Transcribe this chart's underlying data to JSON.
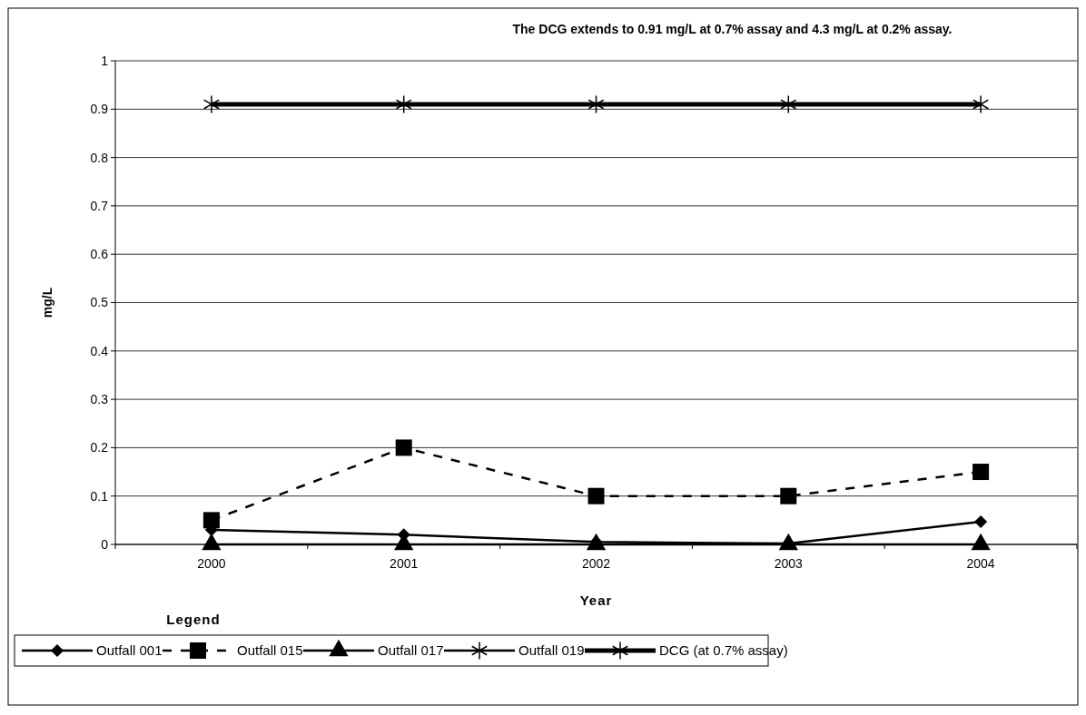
{
  "chart_data": {
    "type": "line",
    "xlabel": "Year",
    "ylabel": "mg/L",
    "legend_title": "Legend",
    "annotations": [
      "The DCG extends to 0.91 mg/L at 0.7% assay and 4.3 mg/L at 0.2% assay."
    ],
    "categories": [
      "2000",
      "2001",
      "2002",
      "2003",
      "2004"
    ],
    "series": [
      {
        "name": "Outfall 001",
        "color": "#000000",
        "marker": "diamond",
        "line_style": "solid",
        "values": [
          0.03,
          0.02,
          0.005,
          0.002,
          0.047
        ]
      },
      {
        "name": "Outfall 015",
        "color": "#000000",
        "marker": "square",
        "line_style": "dashed",
        "values": [
          0.05,
          0.2,
          0.1,
          0.1,
          0.15
        ]
      },
      {
        "name": "Outfall 017",
        "color": "#000000",
        "marker": "triangle",
        "line_style": "solid",
        "values": [
          0,
          0,
          0,
          0,
          0
        ]
      },
      {
        "name": "Outfall 019",
        "color": "#000000",
        "marker": "cross",
        "line_style": "solid",
        "values": [
          null,
          null,
          null,
          null,
          null
        ]
      },
      {
        "name": "DCG (at 0.7% assay)",
        "color": "#000000",
        "marker": "cross",
        "line_style": "solid",
        "values": [
          0.91,
          0.91,
          0.91,
          0.91,
          0.91
        ]
      }
    ],
    "ylim": [
      0,
      1
    ],
    "yticks": [
      0,
      0.1,
      0.2,
      0.3,
      0.4,
      0.5,
      0.6,
      0.7,
      0.8,
      0.9,
      1
    ],
    "grid": "y",
    "legend": "bottom"
  }
}
